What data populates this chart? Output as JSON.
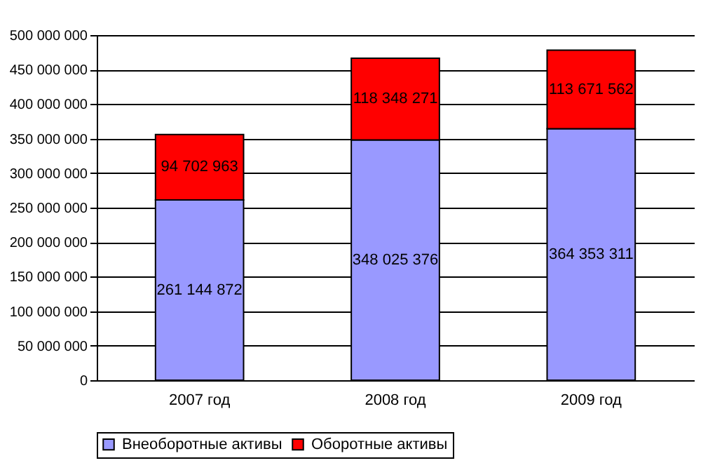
{
  "chart_data": {
    "type": "bar",
    "stacked": true,
    "categories": [
      "2007 год",
      "2008 год",
      "2009 год"
    ],
    "series": [
      {
        "name": "Внеоборотные активы",
        "color": "#9999ff",
        "values": [
          261144872,
          348025376,
          364353311
        ],
        "value_labels": [
          "261 144 872",
          "348 025 376",
          "364 353 311"
        ]
      },
      {
        "name": "Оборотные активы",
        "color": "#ff0000",
        "values": [
          94702963,
          118348271,
          113671562
        ],
        "value_labels": [
          "94 702 963",
          "118 348 271",
          "113 671 562"
        ]
      }
    ],
    "ylim": [
      0,
      500000000
    ],
    "yticks": [
      {
        "value": 0,
        "label": "0"
      },
      {
        "value": 50000000,
        "label": "50 000 000"
      },
      {
        "value": 100000000,
        "label": "100 000 000"
      },
      {
        "value": 150000000,
        "label": "150 000 000"
      },
      {
        "value": 200000000,
        "label": "200 000 000"
      },
      {
        "value": 250000000,
        "label": "250 000 000"
      },
      {
        "value": 300000000,
        "label": "300 000 000"
      },
      {
        "value": 350000000,
        "label": "350 000 000"
      },
      {
        "value": 400000000,
        "label": "400 000 000"
      },
      {
        "value": 450000000,
        "label": "450 000 000"
      },
      {
        "value": 500000000,
        "label": "500 000 000"
      }
    ],
    "grid": "y",
    "legend": "bottom"
  }
}
